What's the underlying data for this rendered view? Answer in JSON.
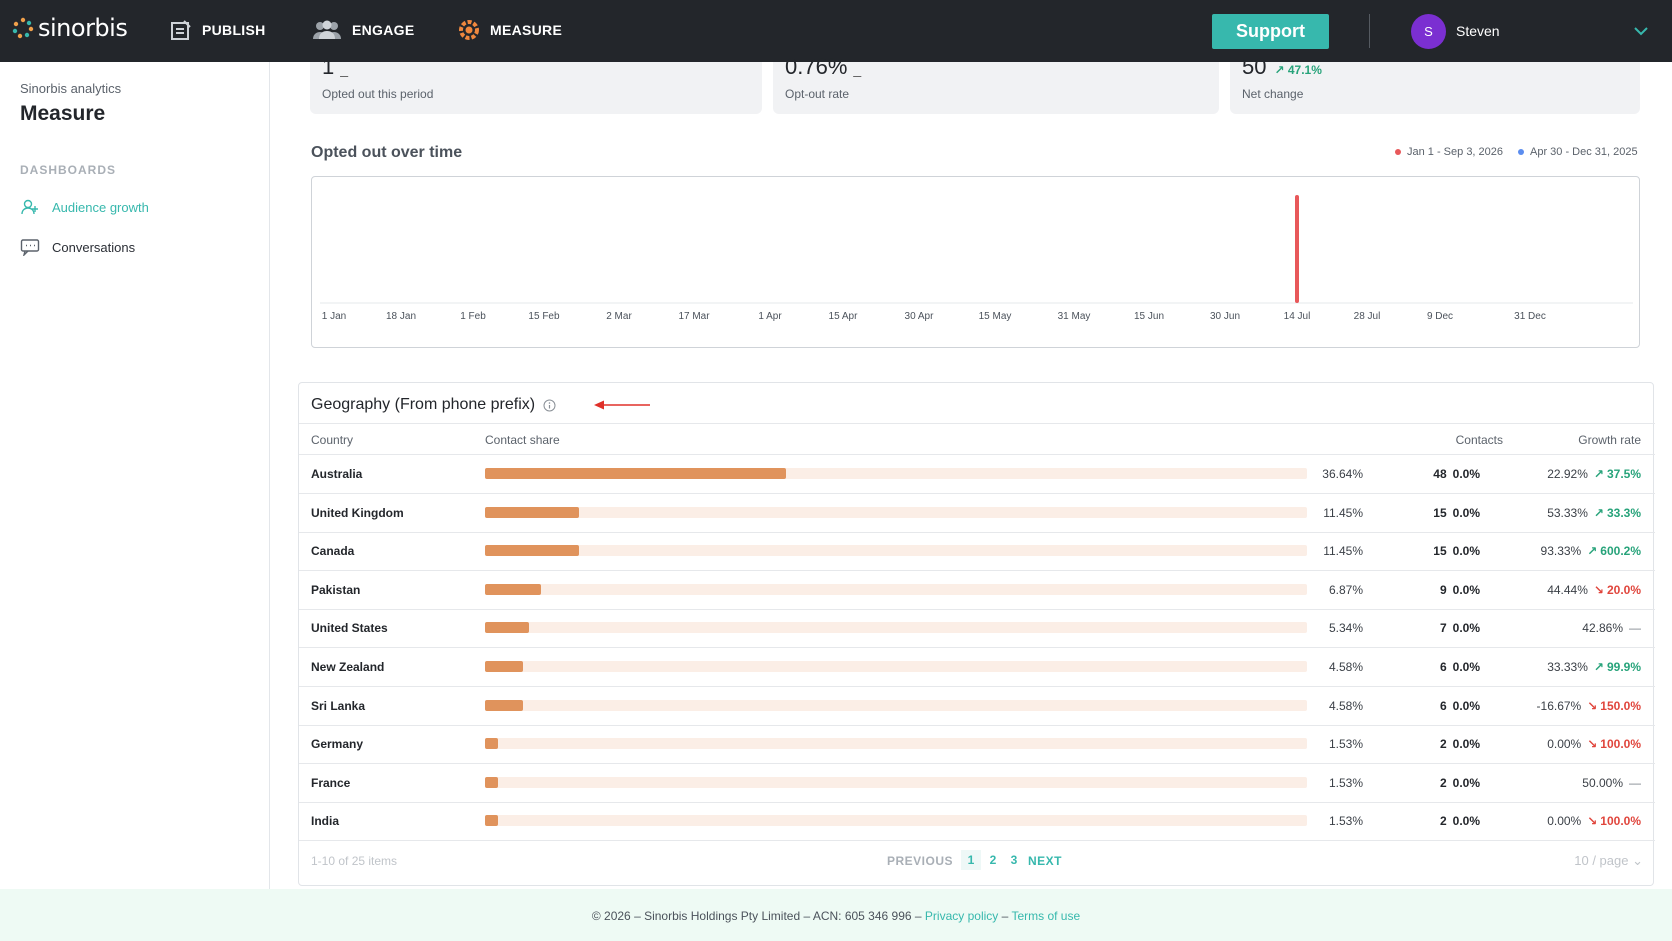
{
  "topbar": {
    "brand": "sinorbis",
    "nav": [
      {
        "label": "PUBLISH",
        "icon": "publish-icon"
      },
      {
        "label": "ENGAGE",
        "icon": "engage-icon"
      },
      {
        "label": "MEASURE",
        "icon": "measure-icon"
      }
    ],
    "support_label": "Support",
    "user_initial": "S",
    "user_name": "Steven"
  },
  "sidebar": {
    "subtitle": "Sinorbis analytics",
    "title": "Measure",
    "section": "DASHBOARDS",
    "items": [
      {
        "label": "Audience growth",
        "icon": "audience-icon",
        "active": true
      },
      {
        "label": "Conversations",
        "icon": "conversation-icon",
        "active": false
      }
    ]
  },
  "stats": [
    {
      "value": "1",
      "suffix": "_",
      "label": "Opted out this period"
    },
    {
      "value": "0.76%",
      "suffix": "_",
      "label": "Opt-out rate"
    },
    {
      "value": "50",
      "trend": "47.1%",
      "label": "Net change"
    }
  ],
  "chart": {
    "title": "Opted out over time",
    "legend": [
      {
        "label": "Jan 1 - Sep 3, 2026",
        "color": "#e8585a"
      },
      {
        "label": "Apr 30 - Dec 31, 2025",
        "color": "#5b8def"
      }
    ]
  },
  "chart_data": {
    "type": "bar",
    "title": "Opted out over time",
    "categories": [
      "1 Jan",
      "18 Jan",
      "1 Feb",
      "15 Feb",
      "2 Mar",
      "17 Mar",
      "1 Apr",
      "15 Apr",
      "30 Apr",
      "15 May",
      "31 May",
      "15 Jun",
      "30 Jun",
      "14 Jul",
      "28 Jul",
      "9 Dec",
      "31 Dec"
    ],
    "series": [
      {
        "name": "Jan 1 - Sep 3, 2026",
        "values": [
          0,
          0,
          0,
          0,
          0,
          0,
          0,
          0,
          0,
          0,
          0,
          0,
          0,
          1,
          0,
          0,
          0
        ]
      }
    ],
    "ylim": [
      0,
      1
    ],
    "grid": false,
    "legend": "top-right"
  },
  "geo": {
    "title": "Geography (From phone prefix)",
    "headers": {
      "country": "Country",
      "share": "Contact share",
      "contacts": "Contacts",
      "growth": "Growth rate"
    },
    "rows": [
      {
        "country": "Australia",
        "share": 36.64,
        "share_label": "36.64%",
        "contacts": "48",
        "contacts_pct": "0.0%",
        "growth": "22.92%",
        "trend": "37.5%",
        "dir": "up"
      },
      {
        "country": "United Kingdom",
        "share": 11.45,
        "share_label": "11.45%",
        "contacts": "15",
        "contacts_pct": "0.0%",
        "growth": "53.33%",
        "trend": "33.3%",
        "dir": "up"
      },
      {
        "country": "Canada",
        "share": 11.45,
        "share_label": "11.45%",
        "contacts": "15",
        "contacts_pct": "0.0%",
        "growth": "93.33%",
        "trend": "600.2%",
        "dir": "up"
      },
      {
        "country": "Pakistan",
        "share": 6.87,
        "share_label": "6.87%",
        "contacts": "9",
        "contacts_pct": "0.0%",
        "growth": "44.44%",
        "trend": "20.0%",
        "dir": "down"
      },
      {
        "country": "United States",
        "share": 5.34,
        "share_label": "5.34%",
        "contacts": "7",
        "contacts_pct": "0.0%",
        "growth": "42.86%",
        "trend": "—",
        "dir": "flat"
      },
      {
        "country": "New Zealand",
        "share": 4.58,
        "share_label": "4.58%",
        "contacts": "6",
        "contacts_pct": "0.0%",
        "growth": "33.33%",
        "trend": "99.9%",
        "dir": "up"
      },
      {
        "country": "Sri Lanka",
        "share": 4.58,
        "share_label": "4.58%",
        "contacts": "6",
        "contacts_pct": "0.0%",
        "growth": "-16.67%",
        "trend": "150.0%",
        "dir": "down"
      },
      {
        "country": "Germany",
        "share": 1.53,
        "share_label": "1.53%",
        "contacts": "2",
        "contacts_pct": "0.0%",
        "growth": "0.00%",
        "trend": "100.0%",
        "dir": "down"
      },
      {
        "country": "France",
        "share": 1.53,
        "share_label": "1.53%",
        "contacts": "2",
        "contacts_pct": "0.0%",
        "growth": "50.00%",
        "trend": "—",
        "dir": "flat"
      },
      {
        "country": "India",
        "share": 1.53,
        "share_label": "1.53%",
        "contacts": "2",
        "contacts_pct": "0.0%",
        "growth": "0.00%",
        "trend": "100.0%",
        "dir": "down"
      }
    ],
    "pager": {
      "items_label": "1-10 of 25 items",
      "prev": "PREVIOUS",
      "pages": [
        "1",
        "2",
        "3"
      ],
      "next": "NEXT",
      "per_page": "10 / page"
    }
  },
  "footer": {
    "text": "© 2026 – Sinorbis Holdings Pty Limited – ACN: 605 346 996 –",
    "privacy": "Privacy policy",
    "sep": "–",
    "terms": "Terms of use"
  },
  "colors": {
    "accent": "#37b8ad",
    "bar": "#e0935c",
    "up": "#27a37a",
    "down": "#e0453c"
  }
}
